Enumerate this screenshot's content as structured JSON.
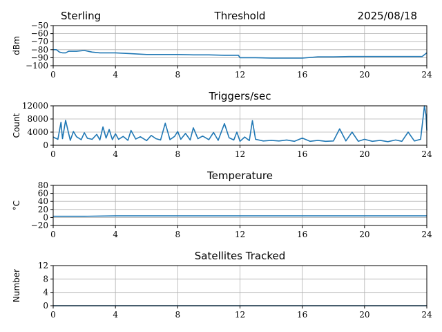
{
  "header": {
    "location": "Sterling",
    "date": "2025/08/18"
  },
  "chart_data": [
    {
      "type": "line",
      "title": "Threshold",
      "xlabel": "",
      "ylabel": "dBm",
      "xlim": [
        0,
        24
      ],
      "ylim": [
        -100,
        -50
      ],
      "x_ticks": [
        "0",
        "4",
        "8",
        "12",
        "16",
        "20",
        "24"
      ],
      "y_ticks": [
        "−100",
        "−90",
        "−80",
        "−70",
        "−60",
        "−50"
      ],
      "y_tick_values": [
        -100,
        -90,
        -80,
        -70,
        -60,
        -50
      ],
      "grid": true,
      "color": "#1f77b4",
      "series": [
        {
          "x": [
            0,
            0.2,
            0.4,
            0.6,
            0.8,
            1.0,
            1.5,
            2.0,
            2.5,
            3.0,
            3.5,
            4.0,
            5.0,
            6.0,
            7.0,
            8.0,
            9.0,
            10.0,
            11.0,
            11.9,
            12.0,
            13.0,
            14.0,
            15.0,
            16.0,
            17.0,
            18.0,
            19.0,
            20.0,
            21.0,
            22.0,
            23.0,
            23.7,
            24.0
          ],
          "y": [
            -80,
            -80,
            -83,
            -84,
            -84,
            -82,
            -82,
            -81,
            -83,
            -84,
            -84,
            -84,
            -85,
            -86,
            -86,
            -86,
            -86.5,
            -86.5,
            -87,
            -87,
            -90,
            -90,
            -90.5,
            -90.5,
            -90.5,
            -89,
            -89,
            -88.5,
            -88.5,
            -88.5,
            -88.5,
            -88.5,
            -88.5,
            -84
          ]
        }
      ]
    },
    {
      "type": "line",
      "title": "Triggers/sec",
      "xlabel": "",
      "ylabel": "Count",
      "xlim": [
        0,
        24
      ],
      "ylim": [
        0,
        12000
      ],
      "x_ticks": [
        "0",
        "4",
        "8",
        "12",
        "16",
        "20",
        "24"
      ],
      "y_ticks": [
        "0",
        "4000",
        "8000",
        "12000"
      ],
      "y_tick_values": [
        0,
        4000,
        8000,
        12000
      ],
      "grid": true,
      "color": "#1f77b4",
      "series": [
        {
          "x": [
            0,
            0.3,
            0.5,
            0.6,
            0.8,
            1.0,
            1.1,
            1.3,
            1.5,
            1.8,
            2.0,
            2.2,
            2.5,
            2.8,
            3.0,
            3.2,
            3.4,
            3.6,
            3.8,
            4.0,
            4.2,
            4.5,
            4.8,
            5.0,
            5.3,
            5.6,
            6.0,
            6.3,
            6.6,
            6.9,
            7.2,
            7.5,
            7.8,
            8.0,
            8.2,
            8.5,
            8.8,
            9.0,
            9.3,
            9.6,
            10.0,
            10.3,
            10.6,
            11.0,
            11.3,
            11.6,
            11.8,
            12.0,
            12.3,
            12.6,
            12.8,
            13.0,
            13.5,
            14.0,
            14.5,
            15.0,
            15.5,
            16.0,
            16.5,
            17.0,
            17.5,
            18.0,
            18.4,
            18.8,
            19.2,
            19.6,
            20.0,
            20.5,
            21.0,
            21.5,
            22.0,
            22.4,
            22.8,
            23.2,
            23.6,
            23.85,
            23.95,
            24.0
          ],
          "y": [
            2500,
            1800,
            7000,
            2000,
            7600,
            3500,
            1500,
            4200,
            2600,
            1700,
            3800,
            2100,
            1800,
            3300,
            1600,
            5600,
            2200,
            4800,
            1700,
            3500,
            1800,
            2700,
            1500,
            4500,
            1900,
            2600,
            1400,
            3000,
            2000,
            1600,
            6700,
            1700,
            2700,
            4200,
            1800,
            3600,
            1600,
            5300,
            2000,
            2800,
            1700,
            3900,
            1500,
            6600,
            2300,
            1600,
            4000,
            1200,
            2500,
            1400,
            7500,
            1800,
            1300,
            1500,
            1300,
            1600,
            1200,
            2200,
            1200,
            1500,
            1200,
            1300,
            5000,
            1300,
            4000,
            1200,
            1800,
            1200,
            1500,
            1100,
            1600,
            1200,
            4000,
            1300,
            1800,
            12000,
            9000,
            4500
          ]
        }
      ]
    },
    {
      "type": "line",
      "title": "Temperature",
      "xlabel": "",
      "ylabel": "°C",
      "xlim": [
        0,
        24
      ],
      "ylim": [
        -20,
        80
      ],
      "x_ticks": [
        "0",
        "4",
        "8",
        "12",
        "16",
        "20",
        "24"
      ],
      "y_ticks": [
        "−20",
        "0",
        "20",
        "40",
        "60",
        "80"
      ],
      "y_tick_values": [
        -20,
        0,
        20,
        40,
        60,
        80
      ],
      "grid": true,
      "color": "#1f77b4",
      "series": [
        {
          "x": [
            0,
            2,
            4,
            6,
            8,
            10,
            12,
            14,
            16,
            18,
            20,
            22,
            24
          ],
          "y": [
            3,
            3,
            4,
            4,
            4,
            4,
            4,
            4,
            4,
            4,
            4,
            4,
            4
          ]
        }
      ]
    },
    {
      "type": "line",
      "title": "Satellites Tracked",
      "xlabel": "",
      "ylabel": "Number",
      "xlim": [
        0,
        24
      ],
      "ylim": [
        0,
        12
      ],
      "x_ticks": [
        "0",
        "4",
        "8",
        "12",
        "16",
        "20",
        "24"
      ],
      "y_ticks": [
        "0",
        "4",
        "8",
        "12"
      ],
      "y_tick_values": [
        0,
        4,
        8,
        12
      ],
      "grid": true,
      "color": "#1f77b4",
      "series": [
        {
          "x": [
            0,
            24
          ],
          "y": [
            0,
            0
          ]
        }
      ]
    }
  ]
}
